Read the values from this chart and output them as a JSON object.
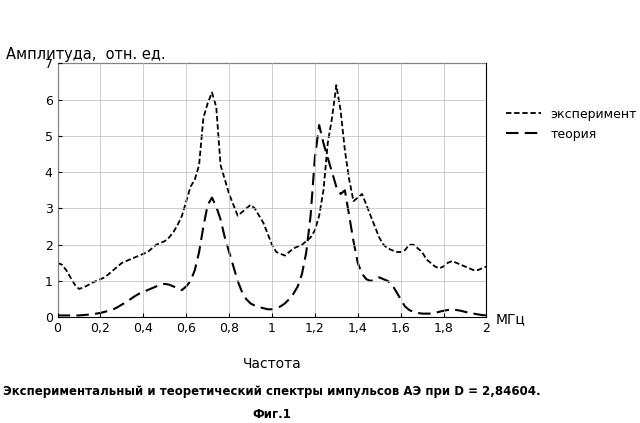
{
  "title_ylabel": "Амплитуда,  отн. ед.",
  "xlabel": "Частота",
  "xlabel_units": "МГц",
  "caption_line1": "Экспериментальный и теоретический спектры импульсов АЭ при D = 2,84604.",
  "caption_line2": "Фиг.1",
  "legend_exp": "эксперимент",
  "legend_theory": "теория",
  "xlim": [
    0,
    2
  ],
  "ylim": [
    0,
    7
  ],
  "xticks": [
    0,
    0.2,
    0.4,
    0.6,
    0.8,
    1.0,
    1.2,
    1.4,
    1.6,
    1.8,
    2.0
  ],
  "yticks": [
    0,
    1,
    2,
    3,
    4,
    5,
    6,
    7
  ],
  "exp_x": [
    0.0,
    0.02,
    0.04,
    0.06,
    0.08,
    0.1,
    0.12,
    0.14,
    0.16,
    0.18,
    0.2,
    0.22,
    0.24,
    0.26,
    0.28,
    0.3,
    0.32,
    0.34,
    0.36,
    0.38,
    0.4,
    0.42,
    0.44,
    0.46,
    0.48,
    0.5,
    0.52,
    0.54,
    0.56,
    0.58,
    0.6,
    0.62,
    0.64,
    0.66,
    0.68,
    0.7,
    0.72,
    0.74,
    0.76,
    0.78,
    0.8,
    0.82,
    0.84,
    0.86,
    0.88,
    0.9,
    0.92,
    0.94,
    0.96,
    0.98,
    1.0,
    1.02,
    1.04,
    1.06,
    1.08,
    1.1,
    1.12,
    1.14,
    1.16,
    1.18,
    1.2,
    1.22,
    1.24,
    1.26,
    1.28,
    1.3,
    1.32,
    1.34,
    1.36,
    1.38,
    1.4,
    1.42,
    1.44,
    1.46,
    1.48,
    1.5,
    1.52,
    1.54,
    1.56,
    1.58,
    1.6,
    1.62,
    1.64,
    1.66,
    1.68,
    1.7,
    1.72,
    1.74,
    1.76,
    1.78,
    1.8,
    1.82,
    1.84,
    1.86,
    1.88,
    1.9,
    1.92,
    1.94,
    1.96,
    1.98,
    2.0
  ],
  "exp_y": [
    1.5,
    1.45,
    1.3,
    1.1,
    0.9,
    0.78,
    0.82,
    0.88,
    0.95,
    1.0,
    1.05,
    1.1,
    1.2,
    1.3,
    1.4,
    1.5,
    1.55,
    1.6,
    1.65,
    1.7,
    1.75,
    1.8,
    1.9,
    2.0,
    2.05,
    2.1,
    2.2,
    2.35,
    2.55,
    2.8,
    3.2,
    3.6,
    3.8,
    4.2,
    5.5,
    5.9,
    6.2,
    5.8,
    4.2,
    3.8,
    3.4,
    3.1,
    2.8,
    2.9,
    3.0,
    3.1,
    3.0,
    2.8,
    2.6,
    2.3,
    2.0,
    1.8,
    1.75,
    1.7,
    1.8,
    1.9,
    1.95,
    2.0,
    2.1,
    2.2,
    2.4,
    2.8,
    3.5,
    4.8,
    5.5,
    6.4,
    5.7,
    4.6,
    3.8,
    3.2,
    3.3,
    3.4,
    3.1,
    2.8,
    2.5,
    2.2,
    2.0,
    1.9,
    1.85,
    1.8,
    1.8,
    1.85,
    2.0,
    2.0,
    1.9,
    1.8,
    1.6,
    1.5,
    1.4,
    1.35,
    1.4,
    1.5,
    1.55,
    1.5,
    1.45,
    1.4,
    1.35,
    1.3,
    1.3,
    1.35,
    1.4
  ],
  "theory_x": [
    0.0,
    0.02,
    0.04,
    0.06,
    0.08,
    0.1,
    0.12,
    0.14,
    0.16,
    0.18,
    0.2,
    0.22,
    0.24,
    0.26,
    0.28,
    0.3,
    0.32,
    0.34,
    0.36,
    0.38,
    0.4,
    0.42,
    0.44,
    0.46,
    0.48,
    0.5,
    0.52,
    0.54,
    0.56,
    0.58,
    0.6,
    0.62,
    0.64,
    0.66,
    0.68,
    0.7,
    0.72,
    0.74,
    0.76,
    0.78,
    0.8,
    0.82,
    0.84,
    0.86,
    0.88,
    0.9,
    0.92,
    0.94,
    0.96,
    0.98,
    1.0,
    1.02,
    1.04,
    1.06,
    1.08,
    1.1,
    1.12,
    1.14,
    1.16,
    1.18,
    1.2,
    1.22,
    1.24,
    1.26,
    1.28,
    1.3,
    1.32,
    1.34,
    1.36,
    1.38,
    1.4,
    1.42,
    1.44,
    1.46,
    1.48,
    1.5,
    1.52,
    1.54,
    1.56,
    1.58,
    1.6,
    1.62,
    1.64,
    1.66,
    1.68,
    1.7,
    1.72,
    1.74,
    1.76,
    1.78,
    1.8,
    1.82,
    1.84,
    1.86,
    1.88,
    1.9,
    1.92,
    1.94,
    1.96,
    1.98,
    2.0
  ],
  "theory_y": [
    0.05,
    0.05,
    0.05,
    0.05,
    0.05,
    0.05,
    0.06,
    0.07,
    0.08,
    0.1,
    0.12,
    0.15,
    0.18,
    0.22,
    0.28,
    0.35,
    0.42,
    0.5,
    0.58,
    0.65,
    0.7,
    0.75,
    0.8,
    0.85,
    0.9,
    0.92,
    0.9,
    0.85,
    0.8,
    0.75,
    0.85,
    1.0,
    1.3,
    1.8,
    2.5,
    3.1,
    3.3,
    3.05,
    2.7,
    2.2,
    1.8,
    1.4,
    1.0,
    0.7,
    0.5,
    0.38,
    0.32,
    0.28,
    0.25,
    0.22,
    0.22,
    0.25,
    0.3,
    0.38,
    0.5,
    0.65,
    0.85,
    1.2,
    1.8,
    2.8,
    4.4,
    5.3,
    4.8,
    4.4,
    4.0,
    3.6,
    3.4,
    3.5,
    2.8,
    2.1,
    1.5,
    1.2,
    1.05,
    1.0,
    1.05,
    1.1,
    1.05,
    1.0,
    0.9,
    0.7,
    0.5,
    0.3,
    0.2,
    0.15,
    0.12,
    0.1,
    0.1,
    0.1,
    0.12,
    0.15,
    0.18,
    0.2,
    0.22,
    0.2,
    0.18,
    0.15,
    0.12,
    0.1,
    0.08,
    0.06,
    0.05
  ],
  "line_color": "#000000",
  "bg_color": "#ffffff",
  "grid_color": "#bbbbbb"
}
